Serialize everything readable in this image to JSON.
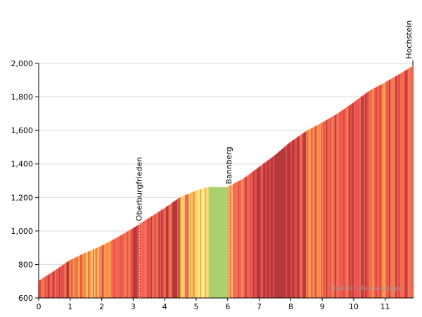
{
  "chart_data": {
    "type": "area",
    "title": "",
    "xlabel": "",
    "ylabel": "",
    "xlim": [
      0,
      11.9
    ],
    "ylim": [
      600,
      2000
    ],
    "x_ticks": [
      0,
      1,
      2,
      3,
      4,
      5,
      6,
      7,
      8,
      9,
      10,
      11
    ],
    "y_ticks": [
      600,
      800,
      1000,
      1200,
      1400,
      1600,
      1800,
      2000
    ],
    "y_tick_labels": [
      "600",
      "800",
      "1,000",
      "1,200",
      "1,400",
      "1,600",
      "1,800",
      "2,000"
    ],
    "grid": true,
    "profile": {
      "x": [
        0,
        0.5,
        1,
        1.5,
        2,
        2.5,
        3,
        3.5,
        4,
        4.5,
        5,
        5.4,
        6.0,
        6.5,
        7,
        7.5,
        8,
        8.5,
        9,
        9.5,
        10,
        10.5,
        11,
        11.5,
        11.9
      ],
      "y": [
        700,
        760,
        825,
        870,
        910,
        960,
        1015,
        1075,
        1135,
        1200,
        1240,
        1262,
        1262,
        1310,
        1380,
        1450,
        1530,
        1595,
        1645,
        1700,
        1765,
        1835,
        1885,
        1940,
        1985
      ]
    },
    "gradient_colors": [
      "#b33a3a",
      "#e84a4a",
      "#f06454",
      "#f37a4e",
      "#f7a246",
      "#fbd26a",
      "#fde88a",
      "#a9d26f"
    ],
    "waypoints": [
      {
        "name": "Oberburgfrieden",
        "x": 3.2,
        "elevation": 1042
      },
      {
        "name": "Bannberg",
        "x": 6.05,
        "elevation": 1262
      },
      {
        "name": "Hochstein",
        "x": 11.9,
        "elevation": 1985
      }
    ],
    "watermark": "quäldich.de via google"
  }
}
